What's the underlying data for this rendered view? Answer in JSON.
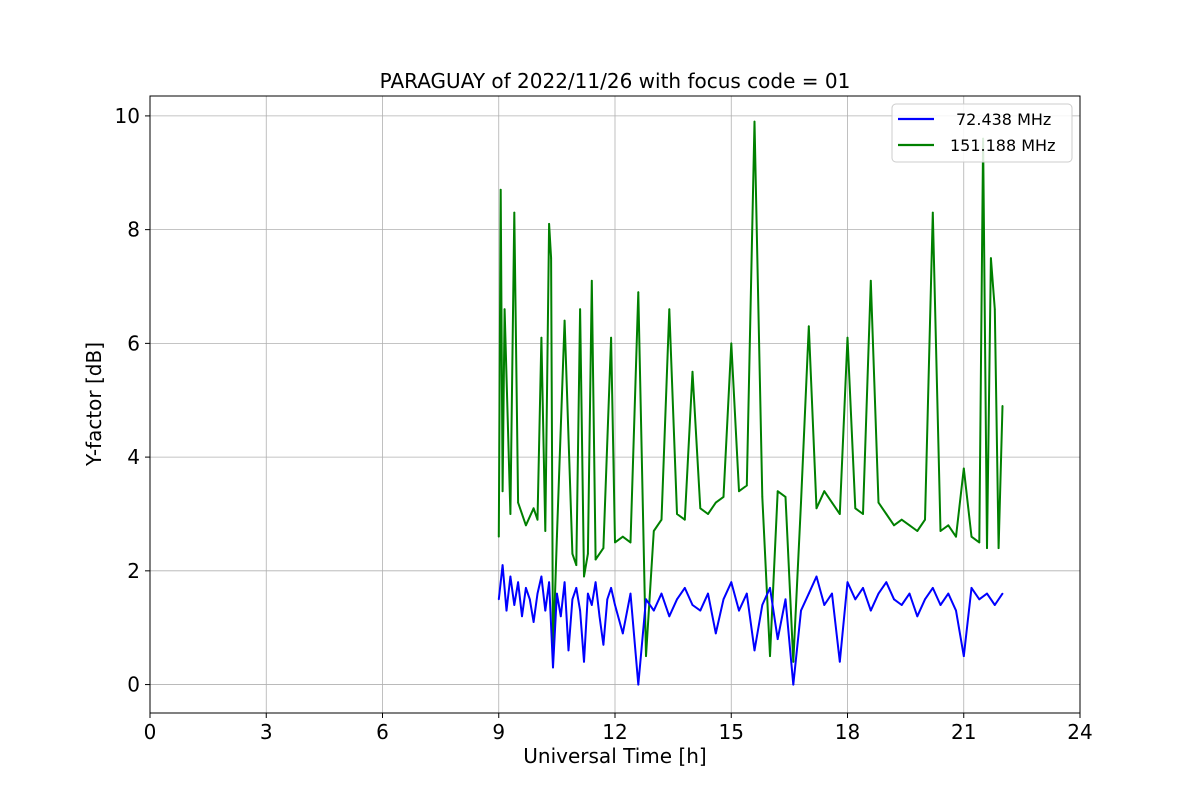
{
  "chart_data": {
    "type": "line",
    "title": "PARAGUAY of 2022/11/26 with focus code = 01",
    "xlabel": "Universal Time [h]",
    "ylabel": "Y-factor [dB]",
    "xlim": [
      0,
      24
    ],
    "ylim": [
      -0.5,
      10.35
    ],
    "xticks": [
      0,
      3,
      6,
      9,
      12,
      15,
      18,
      21,
      24
    ],
    "yticks": [
      0,
      2,
      4,
      6,
      8,
      10
    ],
    "x_tick_labels": [
      "0",
      "3",
      "6",
      "9",
      "12",
      "15",
      "18",
      "21",
      "24"
    ],
    "y_tick_labels": [
      "0",
      "2",
      "4",
      "6",
      "8",
      "10"
    ],
    "grid": true,
    "legend_position": "top-right",
    "series": [
      {
        "name": "72.438 MHz",
        "color": "#0000ff",
        "x": [
          9.0,
          9.1,
          9.2,
          9.3,
          9.4,
          9.5,
          9.6,
          9.7,
          9.8,
          9.9,
          10.0,
          10.1,
          10.2,
          10.3,
          10.4,
          10.5,
          10.6,
          10.7,
          10.8,
          10.9,
          11.0,
          11.1,
          11.2,
          11.3,
          11.4,
          11.5,
          11.6,
          11.7,
          11.8,
          11.9,
          12.0,
          12.2,
          12.4,
          12.6,
          12.8,
          13.0,
          13.2,
          13.4,
          13.6,
          13.8,
          14.0,
          14.2,
          14.4,
          14.6,
          14.8,
          15.0,
          15.2,
          15.4,
          15.6,
          15.8,
          16.0,
          16.2,
          16.4,
          16.6,
          16.8,
          17.0,
          17.2,
          17.4,
          17.6,
          17.8,
          18.0,
          18.2,
          18.4,
          18.6,
          18.8,
          19.0,
          19.2,
          19.4,
          19.6,
          19.8,
          20.0,
          20.2,
          20.4,
          20.6,
          20.8,
          21.0,
          21.2,
          21.4,
          21.6,
          21.8,
          22.0
        ],
        "y": [
          1.5,
          2.1,
          1.3,
          1.9,
          1.4,
          1.8,
          1.2,
          1.7,
          1.5,
          1.1,
          1.6,
          1.9,
          1.3,
          1.8,
          0.3,
          1.6,
          1.2,
          1.8,
          0.6,
          1.5,
          1.7,
          1.3,
          0.4,
          1.6,
          1.4,
          1.8,
          1.2,
          0.7,
          1.5,
          1.7,
          1.4,
          0.9,
          1.6,
          0.0,
          1.5,
          1.3,
          1.6,
          1.2,
          1.5,
          1.7,
          1.4,
          1.3,
          1.6,
          0.9,
          1.5,
          1.8,
          1.3,
          1.6,
          0.6,
          1.4,
          1.7,
          0.8,
          1.5,
          0.0,
          1.3,
          1.6,
          1.9,
          1.4,
          1.6,
          0.4,
          1.8,
          1.5,
          1.7,
          1.3,
          1.6,
          1.8,
          1.5,
          1.4,
          1.6,
          1.2,
          1.5,
          1.7,
          1.4,
          1.6,
          1.3,
          0.5,
          1.7,
          1.5,
          1.6,
          1.4,
          1.6
        ]
      },
      {
        "name": "151.188 MHz",
        "color": "#008000",
        "x": [
          9.0,
          9.05,
          9.1,
          9.15,
          9.3,
          9.4,
          9.5,
          9.7,
          9.9,
          10.0,
          10.1,
          10.2,
          10.3,
          10.35,
          10.4,
          10.5,
          10.7,
          10.9,
          11.0,
          11.1,
          11.2,
          11.3,
          11.4,
          11.5,
          11.7,
          11.9,
          12.0,
          12.2,
          12.4,
          12.6,
          12.8,
          13.0,
          13.2,
          13.4,
          13.6,
          13.8,
          14.0,
          14.2,
          14.4,
          14.6,
          14.8,
          15.0,
          15.2,
          15.4,
          15.6,
          15.8,
          16.0,
          16.2,
          16.4,
          16.6,
          16.8,
          17.0,
          17.2,
          17.4,
          17.6,
          17.8,
          18.0,
          18.2,
          18.4,
          18.6,
          18.8,
          19.0,
          19.2,
          19.4,
          19.6,
          19.8,
          20.0,
          20.2,
          20.4,
          20.6,
          20.8,
          21.0,
          21.2,
          21.4,
          21.5,
          21.6,
          21.7,
          21.8,
          21.9,
          22.0
        ],
        "y": [
          2.6,
          8.7,
          3.4,
          6.6,
          3.0,
          8.3,
          3.2,
          2.8,
          3.1,
          2.9,
          6.1,
          2.7,
          8.1,
          7.5,
          0.5,
          2.6,
          6.4,
          2.3,
          2.1,
          6.6,
          1.9,
          2.3,
          7.1,
          2.2,
          2.4,
          6.1,
          2.5,
          2.6,
          2.5,
          6.9,
          0.5,
          2.7,
          2.9,
          6.6,
          3.0,
          2.9,
          5.5,
          3.1,
          3.0,
          3.2,
          3.3,
          6.0,
          3.4,
          3.5,
          9.9,
          3.3,
          0.5,
          3.4,
          3.3,
          0.4,
          3.2,
          6.3,
          3.1,
          3.4,
          3.2,
          3.0,
          6.1,
          3.1,
          3.0,
          7.1,
          3.2,
          3.0,
          2.8,
          2.9,
          2.8,
          2.7,
          2.9,
          8.3,
          2.7,
          2.8,
          2.6,
          3.8,
          2.6,
          2.5,
          9.6,
          2.4,
          7.5,
          6.6,
          2.4,
          4.9
        ]
      }
    ]
  }
}
